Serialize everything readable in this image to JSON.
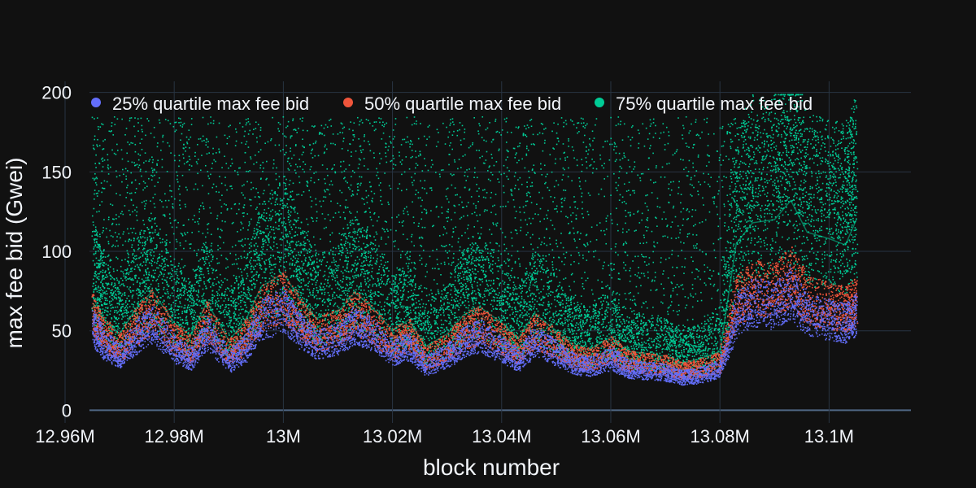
{
  "chart_data": {
    "type": "scatter",
    "xlabel": "block number",
    "ylabel": "max fee bid (Gwei)",
    "xlim": [
      12960000,
      13115000
    ],
    "ylim": [
      -8,
      207
    ],
    "x_ticks": [
      {
        "value": 12960000,
        "label": "12.96M"
      },
      {
        "value": 12980000,
        "label": "12.98M"
      },
      {
        "value": 13000000,
        "label": "13M"
      },
      {
        "value": 13020000,
        "label": "13.02M"
      },
      {
        "value": 13040000,
        "label": "13.04M"
      },
      {
        "value": 13060000,
        "label": "13.06M"
      },
      {
        "value": 13080000,
        "label": "13.08M"
      },
      {
        "value": 13100000,
        "label": "13.1M"
      }
    ],
    "y_ticks": [
      {
        "value": 0,
        "label": "0"
      },
      {
        "value": 50,
        "label": "50"
      },
      {
        "value": 100,
        "label": "100"
      },
      {
        "value": 150,
        "label": "150"
      },
      {
        "value": 200,
        "label": "200"
      }
    ],
    "grid": true,
    "legend_position": "top",
    "x_range": [
      12965000,
      13105000
    ],
    "series": [
      {
        "name": "25% quartile max fee bid",
        "color": "#636efa",
        "x": [
          12965000,
          12967000,
          12970000,
          12973000,
          12976000,
          12980000,
          12983000,
          12986000,
          12990000,
          12993000,
          12996000,
          13000000,
          13003000,
          13006000,
          13010000,
          13013000,
          13016000,
          13020000,
          13023000,
          13026000,
          13030000,
          13033000,
          13036000,
          13040000,
          13043000,
          13046000,
          13050000,
          13053000,
          13056000,
          13060000,
          13063000,
          13066000,
          13070000,
          13073000,
          13076000,
          13080000,
          13083000,
          13086000,
          13090000,
          13093000,
          13096000,
          13100000,
          13103000,
          13105000
        ],
        "values": [
          48,
          38,
          31,
          42,
          50,
          35,
          30,
          45,
          28,
          36,
          52,
          58,
          46,
          38,
          41,
          49,
          44,
          33,
          37,
          26,
          31,
          39,
          43,
          35,
          29,
          40,
          33,
          27,
          25,
          30,
          24,
          23,
          22,
          19,
          20,
          24,
          55,
          62,
          60,
          68,
          55,
          52,
          50,
          55
        ]
      },
      {
        "name": "50% quartile max fee bid",
        "color": "#ef553b",
        "x": [
          12965000,
          12967000,
          12970000,
          12973000,
          12976000,
          12980000,
          12983000,
          12986000,
          12990000,
          12993000,
          12996000,
          13000000,
          13003000,
          13006000,
          13010000,
          13013000,
          13016000,
          13020000,
          13023000,
          13026000,
          13030000,
          13033000,
          13036000,
          13040000,
          13043000,
          13046000,
          13050000,
          13053000,
          13056000,
          13060000,
          13063000,
          13066000,
          13070000,
          13073000,
          13076000,
          13080000,
          13083000,
          13086000,
          13090000,
          13093000,
          13096000,
          13100000,
          13103000,
          13105000
        ],
        "values": [
          55,
          44,
          36,
          48,
          57,
          41,
          35,
          51,
          33,
          42,
          59,
          65,
          53,
          44,
          47,
          56,
          50,
          38,
          43,
          30,
          36,
          45,
          49,
          41,
          34,
          46,
          38,
          31,
          29,
          35,
          28,
          27,
          26,
          23,
          24,
          28,
          63,
          70,
          69,
          77,
          63,
          60,
          58,
          63
        ]
      },
      {
        "name": "75% quartile max fee bid",
        "color": "#00cc96",
        "x": [
          12965000,
          12967000,
          12970000,
          12973000,
          12976000,
          12980000,
          12983000,
          12986000,
          12990000,
          12993000,
          12996000,
          13000000,
          13003000,
          13006000,
          13010000,
          13013000,
          13016000,
          13020000,
          13023000,
          13026000,
          13030000,
          13033000,
          13036000,
          13040000,
          13043000,
          13046000,
          13050000,
          13053000,
          13056000,
          13060000,
          13063000,
          13066000,
          13070000,
          13073000,
          13076000,
          13080000,
          13083000,
          13086000,
          13090000,
          13093000,
          13096000,
          13100000,
          13103000,
          13105000
        ],
        "values": [
          72,
          58,
          48,
          64,
          75,
          55,
          47,
          68,
          44,
          56,
          78,
          86,
          70,
          58,
          62,
          74,
          66,
          50,
          57,
          40,
          48,
          60,
          65,
          55,
          45,
          61,
          50,
          41,
          38,
          46,
          37,
          36,
          34,
          30,
          32,
          37,
          105,
          118,
          120,
          132,
          112,
          108,
          104,
          120
        ]
      }
    ]
  }
}
